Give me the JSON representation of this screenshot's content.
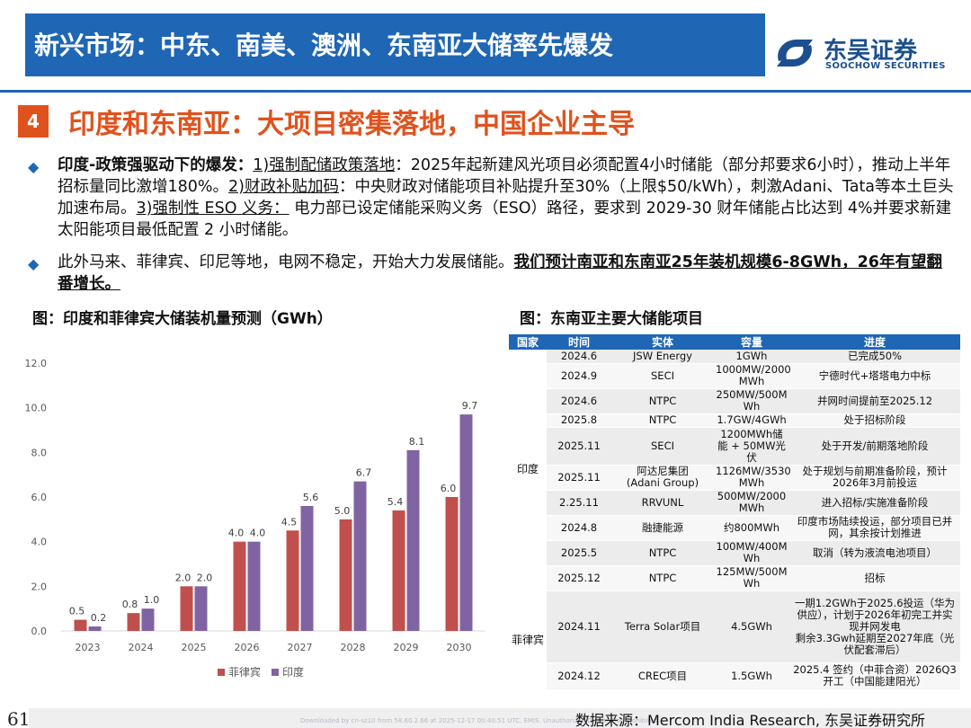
{
  "header": {
    "title": "新兴市场：中东、南美、澳洲、东南亚大储率先爆发",
    "logo_cn": "东吴证券",
    "logo_en": "SOOCHOW SECURITIES"
  },
  "section": {
    "number": "4",
    "title": "印度和东南亚：大项目密集落地，中国企业主导"
  },
  "bullet1": {
    "lead": "印度-政策强驱动下的爆发：",
    "p1_label": "1)强制配储政策落地",
    "p1_text": "：2025年起新建风光项目必须配置4小时储能（部分邦要求6小时），推动上半年招标量同比激增180%。",
    "p2_label": "2)财政补贴加码",
    "p2_text": "：中央财政对储能项目补贴提升至30%（上限$50/kWh），刺激Adani、Tata等本土巨头加速布局。",
    "p3_label": "3)强制性 ESO 义务：",
    "p3_text": " 电力部已设定储能采购义务（ESO）路径，要求到 2029-30 财年储能占比达到 4%并要求新建太阳能项目最低配置 2 小时储能。"
  },
  "bullet2": {
    "text": "此外马来、菲律宾、印尼等地，电网不稳定，开始大力发展储能。",
    "bold": "我们预计南亚和东南亚25年装机规模6-8GWh，26年有望翻番增长。"
  },
  "figures": {
    "left_title": "图：印度和菲律宾大储装机量预测（GWh）",
    "right_title": "图：东南亚主要大储能项目"
  },
  "chart_data": {
    "type": "bar",
    "categories": [
      "2023",
      "2024",
      "2025",
      "2026",
      "2027",
      "2028",
      "2029",
      "2030"
    ],
    "series": [
      {
        "name": "菲律宾",
        "values": [
          0.5,
          0.8,
          2.0,
          4.0,
          4.5,
          5.0,
          5.4,
          6.0
        ],
        "labels": [
          "0.5",
          "0.8",
          "2.0",
          "4.0",
          "4.5",
          "5.0",
          "5.4",
          "6.0"
        ],
        "color": "#c0504d"
      },
      {
        "name": "印度",
        "values": [
          0.2,
          1.0,
          2.0,
          4.0,
          5.6,
          6.7,
          8.1,
          9.7
        ],
        "labels": [
          "0.2",
          "1.0",
          "2.0",
          "4.0",
          "5.6",
          "6.7",
          "8.1",
          "9.7"
        ],
        "color": "#8064a2"
      }
    ],
    "ylim": [
      0,
      12
    ],
    "yticks": [
      "0.0",
      "2.0",
      "4.0",
      "6.0",
      "8.0",
      "10.0",
      "12.0"
    ],
    "grid": false,
    "legend": "bottom"
  },
  "table": {
    "headers": [
      "国家",
      "时间",
      "实体",
      "容量",
      "进度"
    ],
    "groups": [
      {
        "country": "印度",
        "rows": [
          [
            "2024.6",
            "JSW Energy",
            "1GWh",
            "已完成50%"
          ],
          [
            "2024.9",
            "SECI",
            "1000MW/2000\nMWh",
            "宁德时代+塔塔电力中标"
          ],
          [
            "2024.6",
            "NTPC",
            "250MW/500M\nWh",
            "并网时间提前至2025.12"
          ],
          [
            "2025.8",
            "NTPC",
            "1.7GW/4GWh",
            "处于招标阶段"
          ],
          [
            "2025.11",
            "SECI",
            "1200MWh储\n能 + 50MW光\n伏",
            "处于开发/前期落地阶段"
          ],
          [
            "2025.11",
            "阿达尼集团\n(Adani Group)",
            "1126MW/3530\nMWh",
            "处于规划与前期准备阶段，预计\n2026年3月前投运"
          ],
          [
            "2.25.11",
            "RRVUNL",
            "500MW/2000\nMWh",
            "进入招标/实施准备阶段"
          ],
          [
            "2024.8",
            "融捷能源",
            "约800MWh",
            "印度市场陆续投运，部分项目已并\n网，其余按计划推进"
          ],
          [
            "2025.5",
            "NTPC",
            "100MW/400M\nWh",
            "取消（转为液流电池项目）"
          ],
          [
            "2025.12",
            "NTPC",
            "125MW/500M\nWh",
            "招标"
          ]
        ]
      },
      {
        "country": "菲律宾",
        "rows": [
          [
            "2024.11",
            "Terra Solar项目",
            "4.5GWh",
            "一期1.2GWh于2025.6投运（华为\n供应），计划于2026年初完工并实\n现并网发电\n剩余3.3Gwh延期至2027年底（光\n伏配套滞后）"
          ],
          [
            "2024.12",
            "CREC项目",
            "1.5GWh",
            "2025.4 签约（中菲合资）2026Q3\n开工（中国能建阳光）"
          ]
        ]
      }
    ]
  },
  "footer": {
    "page": "61",
    "source": "数据来源：Mercom India Research, 东吴证券研究所",
    "watermark": "Downloaded by cn-sz10 from 58.60.2.66 at 2025-12-17 00:40:51 UTC. EMIS. Unauthorized Distribution Prohibited."
  }
}
